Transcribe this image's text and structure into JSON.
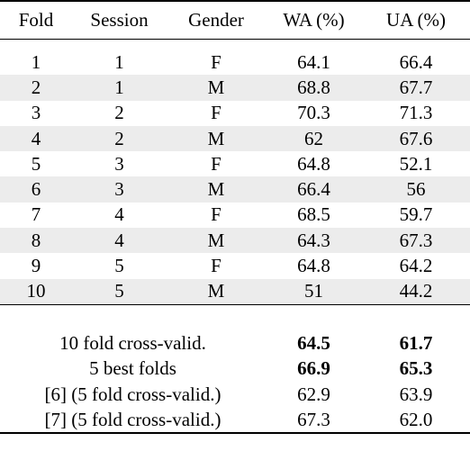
{
  "table": {
    "headers": [
      "Fold",
      "Session",
      "Gender",
      "WA (%)",
      "UA (%)"
    ],
    "rows": [
      {
        "fold": "1",
        "session": "1",
        "gender": "F",
        "wa": "64.1",
        "ua": "66.4"
      },
      {
        "fold": "2",
        "session": "1",
        "gender": "M",
        "wa": "68.8",
        "ua": "67.7"
      },
      {
        "fold": "3",
        "session": "2",
        "gender": "F",
        "wa": "70.3",
        "ua": "71.3"
      },
      {
        "fold": "4",
        "session": "2",
        "gender": "M",
        "wa": "62",
        "ua": "67.6"
      },
      {
        "fold": "5",
        "session": "3",
        "gender": "F",
        "wa": "64.8",
        "ua": "52.1"
      },
      {
        "fold": "6",
        "session": "3",
        "gender": "M",
        "wa": "66.4",
        "ua": "56"
      },
      {
        "fold": "7",
        "session": "4",
        "gender": "F",
        "wa": "68.5",
        "ua": "59.7"
      },
      {
        "fold": "8",
        "session": "4",
        "gender": "M",
        "wa": "64.3",
        "ua": "67.3"
      },
      {
        "fold": "9",
        "session": "5",
        "gender": "F",
        "wa": "64.8",
        "ua": "64.2"
      },
      {
        "fold": "10",
        "session": "5",
        "gender": "M",
        "wa": "51",
        "ua": "44.2"
      }
    ],
    "summary": [
      {
        "label": "10 fold cross-valid.",
        "wa": "64.5",
        "ua": "61.7",
        "bold": true
      },
      {
        "label": "5 best folds",
        "wa": "66.9",
        "ua": "65.3",
        "bold": true
      },
      {
        "label": "[6] (5 fold cross-valid.)",
        "wa": "62.9",
        "ua": "63.9",
        "bold": false
      },
      {
        "label": "[7] (5 fold cross-valid.)",
        "wa": "67.3",
        "ua": "62.0",
        "bold": false
      }
    ],
    "shaded_row_color": "#ececec"
  }
}
